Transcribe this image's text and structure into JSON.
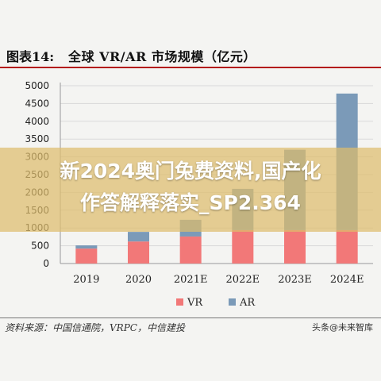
{
  "figure": {
    "label": "图表14:",
    "title": "全球 VR/AR 市场规模（亿元）"
  },
  "chart_data": {
    "type": "bar",
    "stacked": true,
    "categories": [
      "2019",
      "2020",
      "2021E",
      "2022E",
      "2023E",
      "2024E"
    ],
    "series": [
      {
        "name": "VR",
        "values": [
          420,
          620,
          760,
          940,
          940,
          940
        ],
        "color": "#f27878"
      },
      {
        "name": "AR",
        "values": [
          90,
          270,
          470,
          1160,
          2260,
          3840
        ],
        "color": "#7b9ab8"
      }
    ],
    "y_ticks": [
      0,
      500,
      1000,
      1500,
      2000,
      2500,
      3000,
      3500,
      4000,
      4500,
      5000
    ],
    "ylim": [
      0,
      5000
    ],
    "grid": true,
    "legend_position": "bottom"
  },
  "source": "资料来源：中国信通院，VRPC，中信建投",
  "watermark": "头条@未来智库",
  "banner": {
    "line1": "新2024奥门兔费资料,国产化",
    "line2": "作答解释落实_SP2.364"
  }
}
